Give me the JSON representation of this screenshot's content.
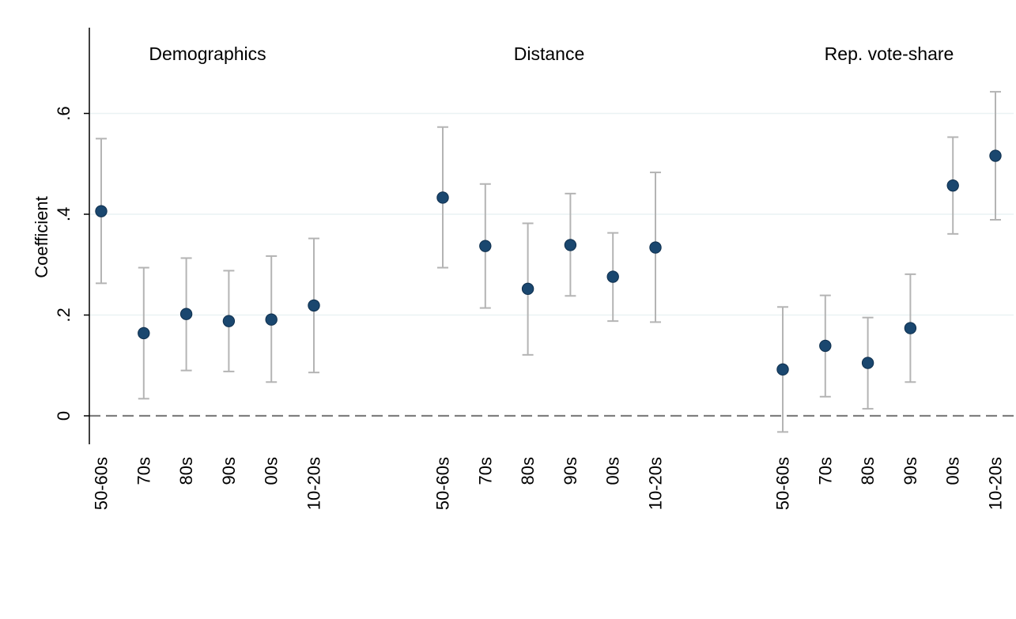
{
  "chart_data": {
    "type": "scatter",
    "ylabel": "Coefficient",
    "ylim": [
      -0.055,
      0.77
    ],
    "yticks": [
      {
        "value": 0,
        "label": "0"
      },
      {
        "value": 0.2,
        "label": ".2"
      },
      {
        "value": 0.4,
        "label": ".4"
      },
      {
        "value": 0.6,
        "label": ".6"
      }
    ],
    "grid": true,
    "reference_line": {
      "value": 0,
      "style": "dashed"
    },
    "colors": {
      "point": "#1a476f",
      "errorbar": "#b4b4b4",
      "grid": "#eaf2f3",
      "refline": "#7f7f7f",
      "axis": "#000000"
    },
    "groups": [
      {
        "title": "Demographics",
        "categories": [
          "50-60s",
          "70s",
          "80s",
          "90s",
          "00s",
          "10-20s"
        ],
        "values": [
          0.406,
          0.164,
          0.202,
          0.188,
          0.191,
          0.219
        ],
        "ci_low": [
          0.263,
          0.034,
          0.09,
          0.088,
          0.067,
          0.086
        ],
        "ci_high": [
          0.55,
          0.294,
          0.313,
          0.288,
          0.317,
          0.352
        ]
      },
      {
        "title": "Distance",
        "categories": [
          "50-60s",
          "70s",
          "80s",
          "90s",
          "00s",
          "10-20s"
        ],
        "values": [
          0.433,
          0.337,
          0.252,
          0.339,
          0.276,
          0.334
        ],
        "ci_low": [
          0.294,
          0.214,
          0.121,
          0.238,
          0.188,
          0.186
        ],
        "ci_high": [
          0.573,
          0.46,
          0.382,
          0.441,
          0.363,
          0.483
        ]
      },
      {
        "title": "Rep. vote-share",
        "categories": [
          "50-60s",
          "70s",
          "80s",
          "90s",
          "00s",
          "10-20s"
        ],
        "values": [
          0.092,
          0.139,
          0.105,
          0.174,
          0.457,
          0.516
        ],
        "ci_low": [
          -0.032,
          0.038,
          0.014,
          0.067,
          0.361,
          0.389
        ],
        "ci_high": [
          0.216,
          0.239,
          0.195,
          0.281,
          0.553,
          0.643
        ]
      }
    ]
  }
}
